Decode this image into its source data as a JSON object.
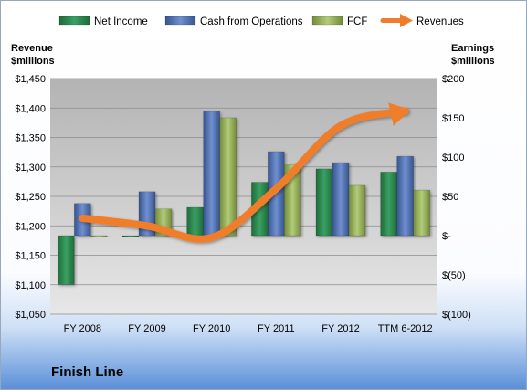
{
  "chart_data": {
    "type": "bar",
    "company": "Finish Line",
    "categories": [
      "FY 2008",
      "FY 2009",
      "FY 2010",
      "FY 2011",
      "FY 2012",
      "TTM 6-2012"
    ],
    "left_axis": {
      "title_line1": "Revenue",
      "title_line2": "$millions",
      "ylim": [
        1050,
        1450
      ],
      "ticks": [
        1050,
        1100,
        1150,
        1200,
        1250,
        1300,
        1350,
        1400,
        1450
      ],
      "tick_labels": [
        "$1,050",
        "$1,100",
        "$1,150",
        "$1,200",
        "$1,250",
        "$1,300",
        "$1,350",
        "$1,400",
        "$1,450"
      ]
    },
    "right_axis": {
      "title_line1": "Earnings",
      "title_line2": "$millions",
      "ylim": [
        -100,
        200
      ],
      "ticks": [
        -100,
        -50,
        0,
        50,
        100,
        150,
        200
      ],
      "tick_labels": [
        "$(100)",
        "$(50)",
        "$-",
        "$50",
        "$100",
        "$150",
        "$200"
      ]
    },
    "series": [
      {
        "name": "Net Income",
        "type": "bar",
        "axis": "right",
        "color": "#2e8b50",
        "values": [
          -62,
          -1,
          36,
          68,
          85,
          81
        ]
      },
      {
        "name": "Cash from Operations",
        "type": "bar",
        "axis": "right",
        "color": "#4f71b8",
        "values": [
          41,
          56,
          158,
          107,
          93,
          101
        ]
      },
      {
        "name": "FCF",
        "type": "bar",
        "axis": "right",
        "color": "#9bba59",
        "values": [
          -1,
          34,
          150,
          90,
          64,
          58
        ]
      },
      {
        "name": "Revenues",
        "type": "line",
        "axis": "left",
        "color": "#f07d2a",
        "values": [
          1213,
          1200,
          1180,
          1263,
          1370,
          1395
        ]
      }
    ],
    "legend_position": "top",
    "grid": true
  }
}
